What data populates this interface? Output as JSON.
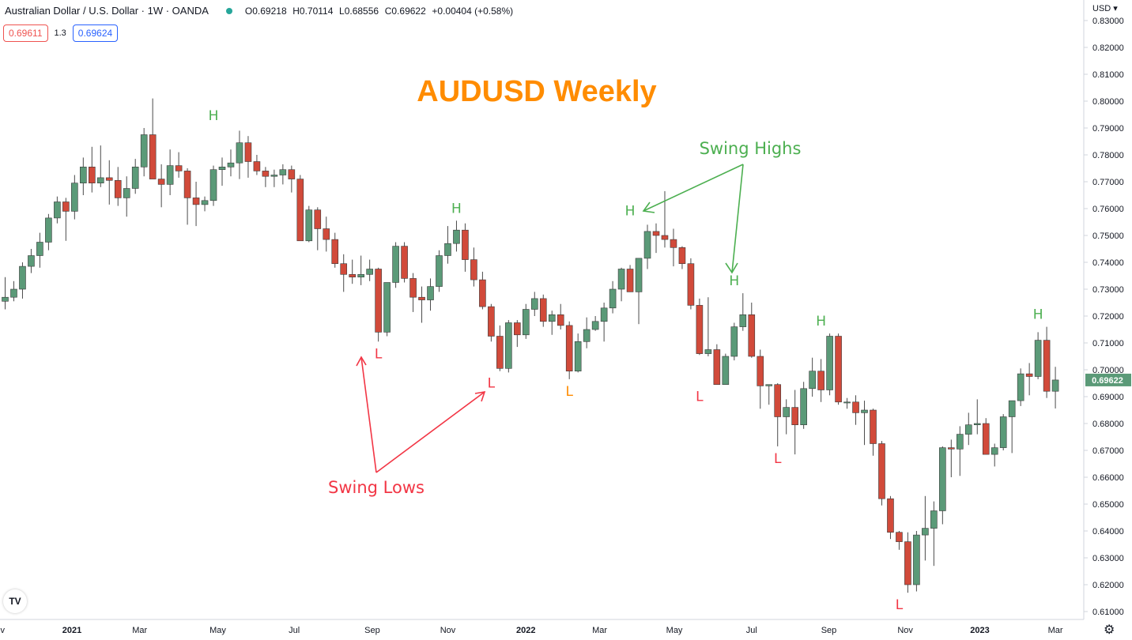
{
  "header": {
    "symbol": "Australian Dollar / U.S. Dollar · 1W · OANDA",
    "open": "O0.69218",
    "high": "H0.70114",
    "low": "L0.68556",
    "close": "C0.69622",
    "change": "+0.00404 (+0.58%)"
  },
  "prices": {
    "bid": "0.69611",
    "spread": "1.3",
    "ask": "0.69624"
  },
  "currency": "USD",
  "logo": "TV",
  "icons": {
    "status": "market-open-dot",
    "settings": "gear-icon"
  },
  "colors": {
    "up": "#5b9a78",
    "down": "#d14a3a",
    "title": "#ff8c00",
    "swing_high": "#4caf50",
    "swing_low": "#f23645",
    "last_price": "#5b9a78"
  },
  "chart_data": {
    "type": "candlestick",
    "title": "AUDUSD Weekly",
    "ylabel": "USD",
    "ylim": [
      0.605,
      0.835
    ],
    "y_ticks": [
      "0.61000",
      "0.62000",
      "0.63000",
      "0.64000",
      "0.65000",
      "0.66000",
      "0.67000",
      "0.68000",
      "0.69000",
      "0.70000",
      "0.71000",
      "0.72000",
      "0.73000",
      "0.74000",
      "0.75000",
      "0.76000",
      "0.77000",
      "0.78000",
      "0.79000",
      "0.80000",
      "0.81000",
      "0.82000",
      "0.83000"
    ],
    "x_ticks": [
      {
        "label": "v",
        "bar": -0.3
      },
      {
        "label": "2021",
        "bar": 7.7
      },
      {
        "label": "Mar",
        "bar": 15.5
      },
      {
        "label": "May",
        "bar": 24.5
      },
      {
        "label": "Jul",
        "bar": 33.3
      },
      {
        "label": "Sep",
        "bar": 42.3
      },
      {
        "label": "Nov",
        "bar": 51.0
      },
      {
        "label": "2022",
        "bar": 60.0
      },
      {
        "label": "Mar",
        "bar": 68.5
      },
      {
        "label": "May",
        "bar": 77.1
      },
      {
        "label": "Jul",
        "bar": 86.0
      },
      {
        "label": "Sep",
        "bar": 94.9
      },
      {
        "label": "Nov",
        "bar": 103.7
      },
      {
        "label": "2023",
        "bar": 112.3
      },
      {
        "label": "Mar",
        "bar": 121.0
      }
    ],
    "last_price": "0.69622",
    "last_close": 0.6962,
    "ohlc": [
      [
        0.7255,
        0.7345,
        0.7225,
        0.727
      ],
      [
        0.727,
        0.733,
        0.7255,
        0.73
      ],
      [
        0.73,
        0.74,
        0.7265,
        0.7385
      ],
      [
        0.7385,
        0.745,
        0.736,
        0.7425
      ],
      [
        0.7425,
        0.751,
        0.738,
        0.7475
      ],
      [
        0.7475,
        0.758,
        0.7445,
        0.7565
      ],
      [
        0.7565,
        0.7645,
        0.7545,
        0.7625
      ],
      [
        0.7625,
        0.764,
        0.748,
        0.759
      ],
      [
        0.759,
        0.7725,
        0.756,
        0.7695
      ],
      [
        0.7695,
        0.779,
        0.765,
        0.7755
      ],
      [
        0.7755,
        0.783,
        0.766,
        0.7695
      ],
      [
        0.7695,
        0.7835,
        0.768,
        0.7715
      ],
      [
        0.7715,
        0.778,
        0.7615,
        0.7705
      ],
      [
        0.7705,
        0.7755,
        0.761,
        0.764
      ],
      [
        0.764,
        0.772,
        0.757,
        0.7675
      ],
      [
        0.7675,
        0.7785,
        0.7655,
        0.7755
      ],
      [
        0.7755,
        0.79,
        0.772,
        0.7875
      ],
      [
        0.7875,
        0.801,
        0.772,
        0.771
      ],
      [
        0.771,
        0.7765,
        0.7605,
        0.769
      ],
      [
        0.769,
        0.782,
        0.765,
        0.776
      ],
      [
        0.776,
        0.781,
        0.7715,
        0.774
      ],
      [
        0.774,
        0.775,
        0.754,
        0.764
      ],
      [
        0.764,
        0.77,
        0.7535,
        0.7615
      ],
      [
        0.7615,
        0.7645,
        0.759,
        0.763
      ],
      [
        0.763,
        0.776,
        0.761,
        0.7745
      ],
      [
        0.7745,
        0.779,
        0.7685,
        0.7755
      ],
      [
        0.7755,
        0.782,
        0.772,
        0.777
      ],
      [
        0.777,
        0.789,
        0.771,
        0.7845
      ],
      [
        0.7845,
        0.787,
        0.7715,
        0.7775
      ],
      [
        0.7775,
        0.78,
        0.7725,
        0.774
      ],
      [
        0.774,
        0.7755,
        0.768,
        0.772
      ],
      [
        0.772,
        0.7745,
        0.768,
        0.7725
      ],
      [
        0.7725,
        0.7765,
        0.769,
        0.7745
      ],
      [
        0.7745,
        0.776,
        0.766,
        0.771
      ],
      [
        0.771,
        0.7725,
        0.748,
        0.748
      ],
      [
        0.748,
        0.761,
        0.7475,
        0.7595
      ],
      [
        0.7595,
        0.7605,
        0.7445,
        0.7525
      ],
      [
        0.7525,
        0.757,
        0.744,
        0.7485
      ],
      [
        0.7485,
        0.751,
        0.738,
        0.7395
      ],
      [
        0.7395,
        0.743,
        0.729,
        0.7355
      ],
      [
        0.7355,
        0.741,
        0.732,
        0.7345
      ],
      [
        0.7345,
        0.7425,
        0.7315,
        0.7355
      ],
      [
        0.7355,
        0.741,
        0.733,
        0.7375
      ],
      [
        0.7375,
        0.738,
        0.7105,
        0.714
      ],
      [
        0.714,
        0.7325,
        0.7125,
        0.7325
      ],
      [
        0.7325,
        0.7475,
        0.7305,
        0.746
      ],
      [
        0.746,
        0.7475,
        0.7325,
        0.734
      ],
      [
        0.734,
        0.736,
        0.7215,
        0.727
      ],
      [
        0.727,
        0.731,
        0.7175,
        0.726
      ],
      [
        0.726,
        0.734,
        0.722,
        0.731
      ],
      [
        0.731,
        0.7445,
        0.729,
        0.7425
      ],
      [
        0.7425,
        0.7535,
        0.7395,
        0.747
      ],
      [
        0.747,
        0.7555,
        0.744,
        0.752
      ],
      [
        0.752,
        0.7545,
        0.7365,
        0.741
      ],
      [
        0.741,
        0.7455,
        0.731,
        0.7335
      ],
      [
        0.7335,
        0.7365,
        0.7225,
        0.7235
      ],
      [
        0.7235,
        0.7245,
        0.7105,
        0.7125
      ],
      [
        0.7125,
        0.7165,
        0.6995,
        0.7005
      ],
      [
        0.7005,
        0.7185,
        0.699,
        0.7175
      ],
      [
        0.7175,
        0.7185,
        0.7085,
        0.713
      ],
      [
        0.713,
        0.7245,
        0.7115,
        0.7225
      ],
      [
        0.7225,
        0.729,
        0.72,
        0.7265
      ],
      [
        0.7265,
        0.728,
        0.716,
        0.718
      ],
      [
        0.718,
        0.722,
        0.713,
        0.7205
      ],
      [
        0.7205,
        0.7245,
        0.715,
        0.7165
      ],
      [
        0.7165,
        0.718,
        0.6965,
        0.6995
      ],
      [
        0.6995,
        0.7135,
        0.699,
        0.7105
      ],
      [
        0.7105,
        0.7195,
        0.708,
        0.715
      ],
      [
        0.715,
        0.72,
        0.7145,
        0.718
      ],
      [
        0.718,
        0.725,
        0.7105,
        0.723
      ],
      [
        0.723,
        0.733,
        0.721,
        0.73
      ],
      [
        0.73,
        0.738,
        0.7255,
        0.7375
      ],
      [
        0.7375,
        0.739,
        0.729,
        0.729
      ],
      [
        0.729,
        0.7415,
        0.717,
        0.7415
      ],
      [
        0.7415,
        0.754,
        0.7375,
        0.7515
      ],
      [
        0.7515,
        0.7545,
        0.7435,
        0.75
      ],
      [
        0.75,
        0.7665,
        0.7455,
        0.7485
      ],
      [
        0.7485,
        0.7525,
        0.7385,
        0.7455
      ],
      [
        0.7455,
        0.746,
        0.7375,
        0.7395
      ],
      [
        0.7395,
        0.7415,
        0.7225,
        0.724
      ],
      [
        0.724,
        0.7265,
        0.7055,
        0.706
      ],
      [
        0.706,
        0.727,
        0.705,
        0.7075
      ],
      [
        0.7075,
        0.7095,
        0.6945,
        0.6945
      ],
      [
        0.6945,
        0.706,
        0.6945,
        0.705
      ],
      [
        0.705,
        0.7175,
        0.7035,
        0.716
      ],
      [
        0.716,
        0.7285,
        0.7145,
        0.7205
      ],
      [
        0.7205,
        0.725,
        0.7045,
        0.705
      ],
      [
        0.705,
        0.7075,
        0.6855,
        0.694
      ],
      [
        0.694,
        0.6945,
        0.687,
        0.6945
      ],
      [
        0.6945,
        0.695,
        0.6715,
        0.6825
      ],
      [
        0.6825,
        0.689,
        0.676,
        0.686
      ],
      [
        0.686,
        0.6925,
        0.6685,
        0.6795
      ],
      [
        0.6795,
        0.6955,
        0.678,
        0.693
      ],
      [
        0.693,
        0.7045,
        0.69,
        0.6995
      ],
      [
        0.6995,
        0.704,
        0.688,
        0.6925
      ],
      [
        0.6925,
        0.7135,
        0.6905,
        0.7125
      ],
      [
        0.7125,
        0.7135,
        0.687,
        0.688
      ],
      [
        0.688,
        0.6895,
        0.6855,
        0.688
      ],
      [
        0.688,
        0.6905,
        0.6795,
        0.684
      ],
      [
        0.684,
        0.6885,
        0.672,
        0.685
      ],
      [
        0.685,
        0.6855,
        0.668,
        0.6725
      ],
      [
        0.6725,
        0.6735,
        0.6495,
        0.652
      ],
      [
        0.652,
        0.653,
        0.637,
        0.6395
      ],
      [
        0.6395,
        0.64,
        0.633,
        0.636
      ],
      [
        0.636,
        0.6395,
        0.617,
        0.62
      ],
      [
        0.62,
        0.64,
        0.6175,
        0.6385
      ],
      [
        0.6385,
        0.653,
        0.629,
        0.641
      ],
      [
        0.641,
        0.651,
        0.627,
        0.6475
      ],
      [
        0.6475,
        0.6715,
        0.6425,
        0.671
      ],
      [
        0.671,
        0.674,
        0.66,
        0.6705
      ],
      [
        0.6705,
        0.679,
        0.6605,
        0.676
      ],
      [
        0.676,
        0.684,
        0.672,
        0.6795
      ],
      [
        0.6795,
        0.689,
        0.676,
        0.68
      ],
      [
        0.68,
        0.682,
        0.6685,
        0.6685
      ],
      [
        0.6685,
        0.6725,
        0.664,
        0.671
      ],
      [
        0.671,
        0.6835,
        0.67,
        0.6825
      ],
      [
        0.6825,
        0.6885,
        0.669,
        0.6885
      ],
      [
        0.6885,
        0.7005,
        0.6865,
        0.6985
      ],
      [
        0.6985,
        0.7025,
        0.6905,
        0.6975
      ],
      [
        0.6975,
        0.714,
        0.6965,
        0.711
      ],
      [
        0.711,
        0.716,
        0.6895,
        0.692
      ],
      [
        0.692,
        0.7011,
        0.6856,
        0.6962
      ]
    ],
    "annotations": [
      {
        "text": "Swing Highs",
        "color": "swing_high",
        "type": "label"
      },
      {
        "text": "Swing Lows",
        "color": "swing_low",
        "type": "label"
      }
    ],
    "swing_labels": [
      {
        "text": "H",
        "bar": 24,
        "color": "swing_high",
        "pos": "above",
        "price": 0.79
      },
      {
        "text": "H",
        "bar": 52,
        "color": "swing_high",
        "pos": "above",
        "price": 0.7555
      },
      {
        "text": "H",
        "bar": 72,
        "color": "swing_high",
        "pos": "above",
        "price": 0.7545
      },
      {
        "text": "H",
        "bar": 84,
        "color": "swing_high",
        "pos": "above",
        "price": 0.7285
      },
      {
        "text": "H",
        "bar": 94,
        "color": "swing_high",
        "pos": "above",
        "price": 0.7135
      },
      {
        "text": "H",
        "bar": 119,
        "color": "swing_high",
        "pos": "above",
        "price": 0.716
      },
      {
        "text": "L",
        "bar": 43,
        "color": "swing_low",
        "pos": "below",
        "price": 0.7105
      },
      {
        "text": "L",
        "bar": 56,
        "color": "swing_low",
        "pos": "below",
        "price": 0.6995
      },
      {
        "text": "L",
        "bar": 65,
        "color": "title",
        "pos": "below",
        "price": 0.6965
      },
      {
        "text": "L",
        "bar": 80,
        "color": "swing_low",
        "pos": "below",
        "price": 0.6945
      },
      {
        "text": "L",
        "bar": 89,
        "color": "swing_low",
        "pos": "below",
        "price": 0.6715
      },
      {
        "text": "L",
        "bar": 103,
        "color": "swing_low",
        "pos": "below",
        "price": 0.617
      }
    ]
  }
}
